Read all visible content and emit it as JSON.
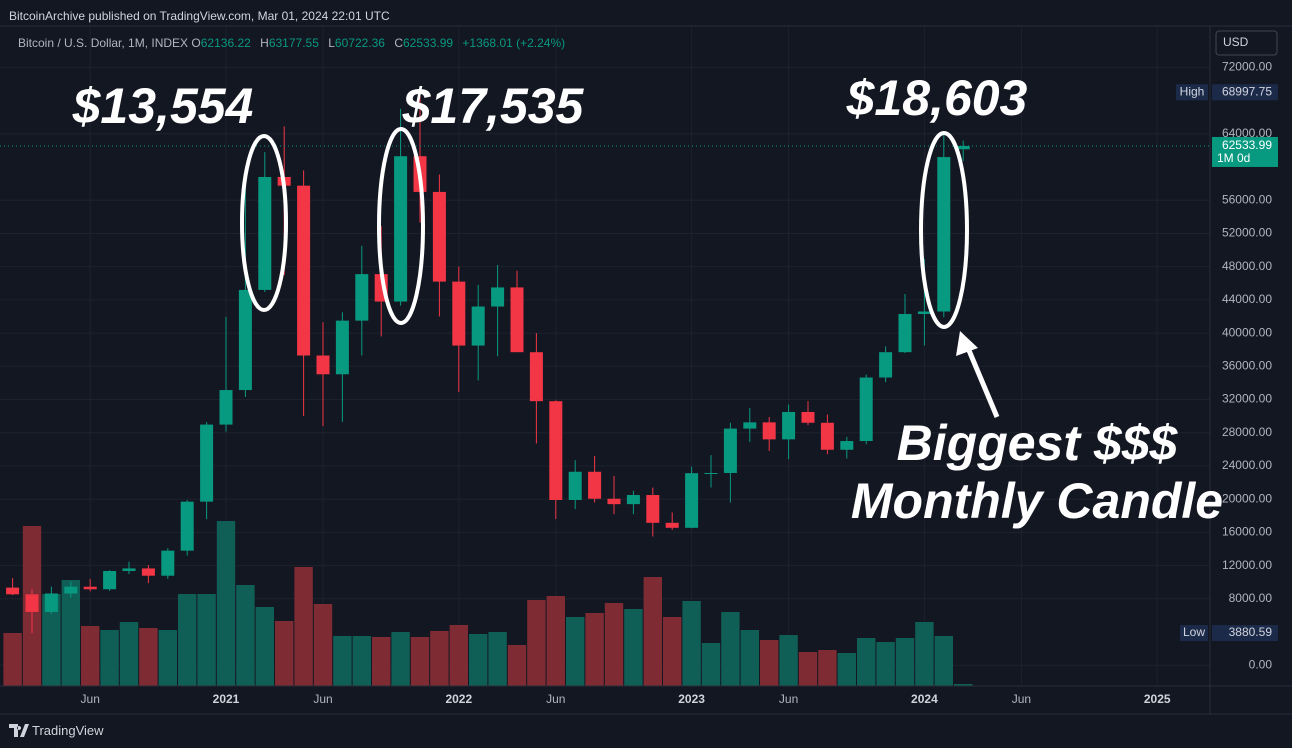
{
  "header": "BitcoinArchive published on TradingView.com, Mar 01, 2024 22:01 UTC",
  "footer": "TradingView",
  "chart_data": {
    "type": "candlestick",
    "symbol": "Bitcoin / U.S. Dollar, 1M, INDEX",
    "legend_labels": [
      "O",
      "H",
      "L",
      "C"
    ],
    "change": "+1368.01 (+2.24%)",
    "currency": "USD",
    "high_label": "High",
    "low_label": "Low",
    "countdown": "1M 0d",
    "annotations": [
      "$13,554",
      "$17,535",
      "$18,603",
      "Biggest $$$",
      "Monthly Candle"
    ],
    "x": [
      "2020-02",
      "2020-03",
      "2020-04",
      "2020-05",
      "2020-06",
      "2020-07",
      "2020-08",
      "2020-09",
      "2020-10",
      "2020-11",
      "2020-12",
      "2021-01",
      "2021-02",
      "2021-03",
      "2021-04",
      "2021-05",
      "2021-06",
      "2021-07",
      "2021-08",
      "2021-09",
      "2021-10",
      "2021-11",
      "2021-12",
      "2022-01",
      "2022-02",
      "2022-03",
      "2022-04",
      "2022-05",
      "2022-06",
      "2022-07",
      "2022-08",
      "2022-09",
      "2022-10",
      "2022-11",
      "2022-12",
      "2023-01",
      "2023-02",
      "2023-03",
      "2023-04",
      "2023-05",
      "2023-06",
      "2023-07",
      "2023-08",
      "2023-09",
      "2023-10",
      "2023-11",
      "2023-12",
      "2024-01",
      "2024-02",
      "2024-03"
    ],
    "open": [
      9350,
      8540,
      6420,
      8640,
      9460,
      9150,
      11350,
      11660,
      10780,
      13800,
      19700,
      28980,
      33140,
      45200,
      58800,
      57750,
      37300,
      35040,
      41500,
      47100,
      43800,
      61300,
      57000,
      46200,
      38500,
      43200,
      45500,
      37700,
      31800,
      19900,
      23300,
      20050,
      19400,
      20500,
      17150,
      16550,
      23130,
      23150,
      28500,
      29250,
      27200,
      30500,
      29200,
      25950,
      27000,
      34650,
      37700,
      42300,
      42600,
      62136.22
    ],
    "high": [
      10500,
      9190,
      9460,
      10080,
      10400,
      11450,
      12470,
      12070,
      14100,
      19900,
      29300,
      41950,
      58350,
      61800,
      64900,
      59600,
      41300,
      42500,
      50500,
      52900,
      67000,
      68997.75,
      59100,
      48000,
      45800,
      48200,
      47500,
      40000,
      31900,
      24700,
      25200,
      22800,
      21000,
      21400,
      18400,
      23900,
      25300,
      29200,
      31000,
      29900,
      31400,
      31800,
      30200,
      27500,
      35000,
      38400,
      44700,
      48900,
      63900,
      63177.55
    ],
    "low": [
      8450,
      3880.59,
      6150,
      8110,
      8900,
      8960,
      10990,
      9880,
      10400,
      13200,
      17600,
      28130,
      32300,
      44950,
      47000,
      30000,
      28800,
      29300,
      37300,
      39600,
      43300,
      53300,
      42000,
      32900,
      34300,
      37200,
      37700,
      26700,
      17600,
      18800,
      19600,
      18200,
      18200,
      15500,
      16300,
      16500,
      21400,
      19600,
      26900,
      25800,
      24800,
      28900,
      25400,
      24900,
      26600,
      34100,
      37600,
      38500,
      41900,
      60722.36
    ],
    "close": [
      8540,
      6420,
      8640,
      9460,
      9150,
      11350,
      11660,
      10780,
      13800,
      19700,
      28980,
      33140,
      45200,
      58800,
      57750,
      37300,
      35040,
      41500,
      47100,
      43800,
      61300,
      57000,
      46200,
      38500,
      43200,
      45500,
      37700,
      31800,
      19900,
      23300,
      20050,
      19400,
      20500,
      17150,
      16550,
      23130,
      23150,
      28500,
      29250,
      27200,
      30500,
      29200,
      25950,
      27000,
      34650,
      37700,
      42300,
      42600,
      61200,
      62533.99
    ],
    "volume": [
      53,
      160,
      92,
      106,
      60,
      56,
      64,
      58,
      56,
      92,
      92,
      165,
      101,
      79,
      65,
      119,
      82,
      50,
      50,
      49,
      54,
      49,
      55,
      61,
      52,
      54,
      41,
      86,
      90,
      69,
      73,
      83,
      77,
      109,
      69,
      85,
      43,
      74,
      56,
      46,
      51,
      34,
      36,
      33,
      48,
      44,
      48,
      64,
      50,
      2
    ],
    "up_color": "#089981",
    "down_color": "#f23645",
    "volume_up_color": "#0f5f56",
    "volume_down_color": "#7f2b33",
    "ylim": [
      -2500,
      76500
    ],
    "yticks": [
      {
        "value": 0,
        "label": "0.00"
      },
      {
        "value": 8000,
        "label": "8000.00"
      },
      {
        "value": 12000,
        "label": "12000.00"
      },
      {
        "value": 16000,
        "label": "16000.00"
      },
      {
        "value": 20000,
        "label": "20000.00"
      },
      {
        "value": 24000,
        "label": "24000.00"
      },
      {
        "value": 28000,
        "label": "28000.00"
      },
      {
        "value": 32000,
        "label": "32000.00"
      },
      {
        "value": 36000,
        "label": "36000.00"
      },
      {
        "value": 40000,
        "label": "40000.00"
      },
      {
        "value": 44000,
        "label": "44000.00"
      },
      {
        "value": 48000,
        "label": "48000.00"
      },
      {
        "value": 52000,
        "label": "52000.00"
      },
      {
        "value": 56000,
        "label": "56000.00"
      },
      {
        "value": 64000,
        "label": "64000.00"
      },
      {
        "value": 72000,
        "label": "72000.00"
      }
    ],
    "xticks": [
      {
        "value": "2020-06",
        "label": "Jun"
      },
      {
        "value": "2021-01",
        "label": "2021"
      },
      {
        "value": "2021-06",
        "label": "Jun"
      },
      {
        "value": "2022-01",
        "label": "2022"
      },
      {
        "value": "2022-06",
        "label": "Jun"
      },
      {
        "value": "2023-01",
        "label": "2023"
      },
      {
        "value": "2023-06",
        "label": "Jun"
      },
      {
        "value": "2024-01",
        "label": "2024"
      },
      {
        "value": "2024-06",
        "label": "Jun"
      },
      {
        "value": "2025-01",
        "label": "2025"
      }
    ],
    "grid": true
  }
}
